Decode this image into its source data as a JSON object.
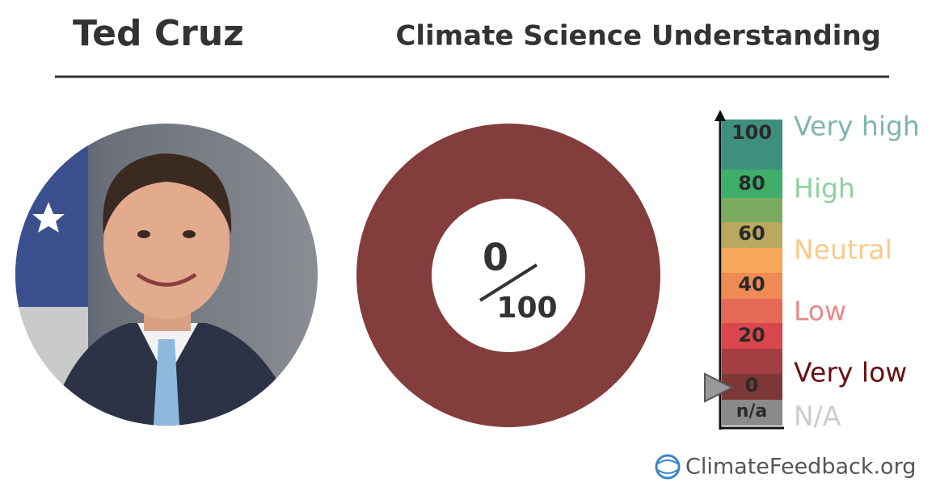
{
  "header": {
    "name": "Ted Cruz",
    "title": "Climate Science Understanding"
  },
  "score": {
    "value": 0,
    "max": 100
  },
  "scale": {
    "ticks": [
      "100",
      "80",
      "60",
      "40",
      "20",
      "0",
      "n/a"
    ],
    "levels": [
      "Very high",
      "High",
      "Neutral",
      "Low",
      "Very low",
      "N/A"
    ]
  },
  "footer": {
    "site": "ClimateFeedback.org"
  }
}
